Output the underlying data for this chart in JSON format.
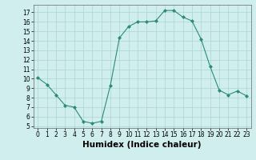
{
  "x": [
    0,
    1,
    2,
    3,
    4,
    5,
    6,
    7,
    8,
    9,
    10,
    11,
    12,
    13,
    14,
    15,
    16,
    17,
    18,
    19,
    20,
    21,
    22,
    23
  ],
  "y": [
    10.1,
    9.4,
    8.3,
    7.2,
    7.0,
    5.5,
    5.3,
    5.5,
    9.3,
    14.3,
    15.5,
    16.0,
    16.0,
    16.1,
    17.2,
    17.2,
    16.5,
    16.1,
    14.2,
    11.3,
    8.8,
    8.3,
    8.7,
    8.2
  ],
  "line_color": "#2d8b72",
  "marker": "D",
  "marker_size": 2.0,
  "bg_color": "#d0eeee",
  "grid_color": "#aad4d4",
  "xlabel": "Humidex (Indice chaleur)",
  "xlabel_fontsize": 7.5,
  "xlabel_weight": "bold",
  "xlim": [
    -0.5,
    23.5
  ],
  "ylim": [
    4.8,
    17.8
  ],
  "yticks": [
    5,
    6,
    7,
    8,
    9,
    10,
    11,
    12,
    13,
    14,
    15,
    16,
    17
  ],
  "xticks": [
    0,
    1,
    2,
    3,
    4,
    5,
    6,
    7,
    8,
    9,
    10,
    11,
    12,
    13,
    14,
    15,
    16,
    17,
    18,
    19,
    20,
    21,
    22,
    23
  ],
  "tick_fontsize": 5.5,
  "linewidth": 0.8
}
